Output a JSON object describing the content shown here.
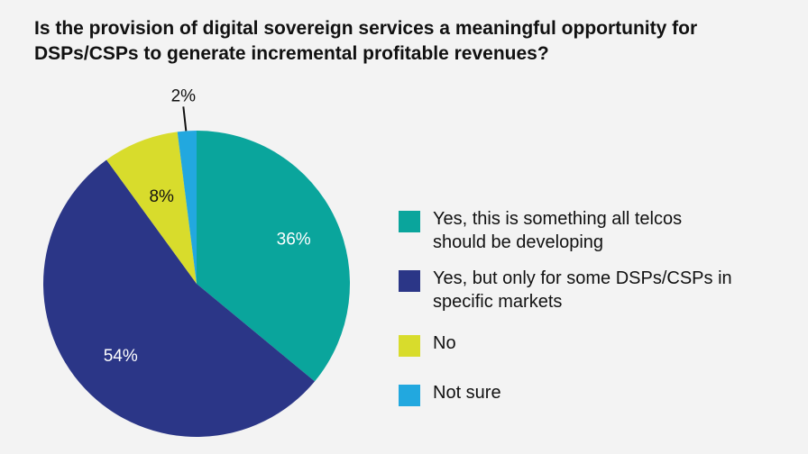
{
  "chart_data": {
    "type": "pie",
    "title": "Is the provision of digital sovereign services a meaningful opportunity for DSPs/CSPs to generate incremental profitable revenues?",
    "slices": [
      {
        "label": "Yes, this is something all telcos should be developing",
        "value": 36,
        "display": "36%",
        "color": "#0aa59c"
      },
      {
        "label": "Yes, but only for some DSPs/CSPs in specific markets",
        "value": 54,
        "display": "54%",
        "color": "#2b3687"
      },
      {
        "label": "No",
        "value": 8,
        "display": "8%",
        "color": "#d8dc2c"
      },
      {
        "label": "Not sure",
        "value": 2,
        "display": "2%",
        "color": "#22a8df"
      }
    ],
    "start": "top",
    "direction": "clockwise",
    "legend_placement": "right"
  }
}
